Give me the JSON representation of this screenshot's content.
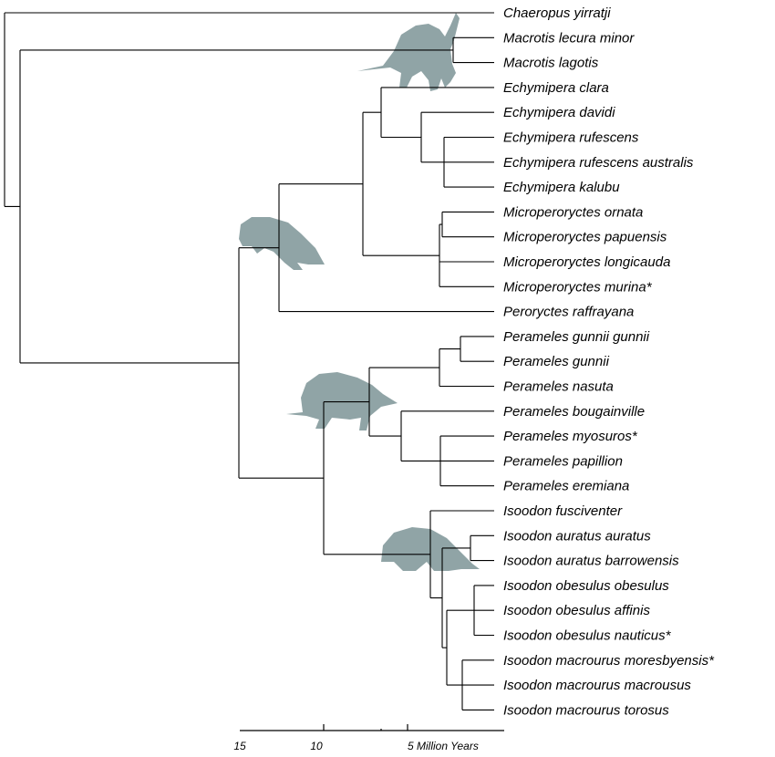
{
  "tips": [
    "Chaeropus yirratji",
    "Macrotis lecura minor",
    "Macrotis lagotis",
    "Echymipera clara",
    "Echymipera davidi",
    "Echymipera rufescens",
    "Echymipera rufescens australis",
    "Echymipera kalubu",
    "Microperoryctes ornata",
    "Microperoryctes papuensis",
    "Microperoryctes longicauda",
    "Microperoryctes murina*",
    "Peroryctes raffrayana",
    "Perameles gunnii gunnii",
    "Perameles gunnii",
    "Perameles nasuta",
    "Perameles bougainville",
    "Perameles myosuros*",
    "Perameles papillion",
    "Perameles eremiana",
    "Isoodon fusciventer",
    "Isoodon auratus auratus",
    "Isoodon auratus barrowensis",
    "Isoodon obesulus obesulus",
    "Isoodon obesulus affinis",
    "Isoodon obesulus nauticus*",
    "Isoodon macrourus moresbyensis*",
    "Isoodon macrourus macrousus",
    "Isoodon macrourus torosus"
  ],
  "axis": {
    "ticks": [
      "15",
      "10",
      "5 Million Years"
    ]
  },
  "colors": {
    "branch": "#000000",
    "silhouette": "#90a4a6"
  },
  "silhouettes": [
    "bilby-silhouette",
    "bandicoot-silhouette",
    "perameles-silhouette",
    "isoodon-silhouette"
  ]
}
